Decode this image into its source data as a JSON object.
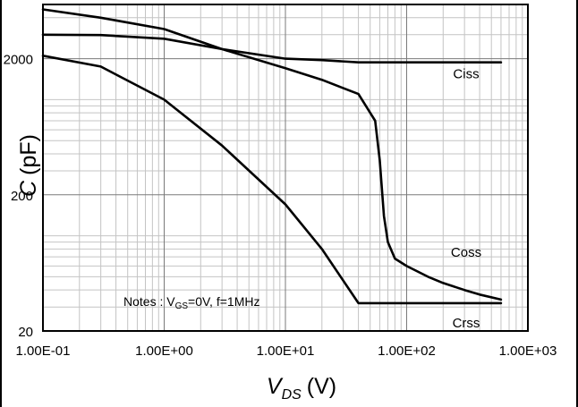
{
  "chart_data": {
    "type": "line",
    "title": "",
    "x_scale": "log",
    "y_scale": "log",
    "xlim": [
      0.1,
      1000
    ],
    "ylim": [
      20,
      5000
    ],
    "grid": true,
    "xlabel": {
      "main": "V",
      "sub": "DS",
      "unit": "(V)"
    },
    "ylabel": {
      "main": "C",
      "unit": "(pF)"
    },
    "x_tick_labels": [
      "1.00E-01",
      "1.00E+00",
      "1.00E+01",
      "1.00E+02",
      "1.00E+03"
    ],
    "x_tick_values": [
      0.1,
      1,
      10,
      100,
      1000
    ],
    "y_tick_labels": [
      "20",
      "200",
      "2000"
    ],
    "y_tick_values": [
      20,
      200,
      2000
    ],
    "annotation": {
      "prefix": "Notes : V",
      "sub": "GS",
      "suffix": "=0V, f=1MHz"
    },
    "series": [
      {
        "name": "Ciss",
        "color": "#000000",
        "x": [
          0.1,
          0.3,
          1,
          3,
          10,
          20,
          40,
          100,
          300,
          600
        ],
        "y": [
          3000,
          2980,
          2800,
          2350,
          2000,
          1950,
          1880,
          1880,
          1880,
          1880
        ]
      },
      {
        "name": "Coss",
        "color": "#000000",
        "x": [
          0.1,
          0.3,
          1,
          3,
          10,
          20,
          40,
          55,
          60,
          65,
          70,
          80,
          100,
          150,
          200,
          300,
          400,
          600
        ],
        "y": [
          4600,
          4000,
          3300,
          2350,
          1700,
          1400,
          1100,
          700,
          360,
          140,
          90,
          68,
          60,
          50,
          45,
          40,
          37,
          34
        ]
      },
      {
        "name": "Crss",
        "color": "#000000",
        "x": [
          0.1,
          0.3,
          1,
          3,
          10,
          20,
          40,
          100,
          300,
          600
        ],
        "y": [
          2100,
          1750,
          1000,
          460,
          170,
          80,
          32,
          32,
          32,
          32
        ]
      }
    ]
  }
}
